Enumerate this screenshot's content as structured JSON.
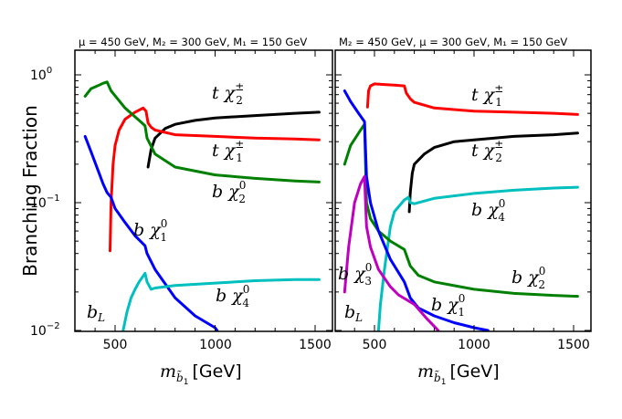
{
  "chart_data": [
    {
      "type": "line",
      "panel": "left",
      "title": "μ = 450 GeV, M₂ = 300 GeV, M₁ = 150 GeV",
      "xlabel": "m_b̃₁ [GeV]",
      "ylabel": "Branching Fraction",
      "yscale": "log",
      "xlim": [
        300,
        1550
      ],
      "ylim": [
        0.01,
        1.5
      ],
      "xticks": [
        500,
        1000,
        1500
      ],
      "yticks": [
        0.01,
        0.1,
        1
      ],
      "series": [
        {
          "name": "t χ₂±",
          "color": "#000000",
          "x": [
            665,
            680,
            700,
            750,
            800,
            900,
            1000,
            1200,
            1400,
            1520
          ],
          "y": [
            0.19,
            0.26,
            0.32,
            0.38,
            0.41,
            0.44,
            0.46,
            0.48,
            0.5,
            0.51
          ]
        },
        {
          "name": "t χ₁±",
          "color": "#ff0000",
          "x": [
            475,
            480,
            490,
            500,
            520,
            550,
            600,
            640,
            655,
            665,
            680,
            700,
            800,
            1000,
            1200,
            1400,
            1520
          ],
          "y": [
            0.042,
            0.1,
            0.2,
            0.28,
            0.37,
            0.45,
            0.51,
            0.55,
            0.52,
            0.42,
            0.39,
            0.37,
            0.34,
            0.33,
            0.32,
            0.315,
            0.31
          ]
        },
        {
          "name": "b χ₂⁰",
          "color": "#008000",
          "x": [
            350,
            380,
            420,
            440,
            460,
            480,
            550,
            620,
            650,
            660,
            700,
            800,
            1000,
            1200,
            1400,
            1520
          ],
          "y": [
            0.68,
            0.78,
            0.83,
            0.86,
            0.88,
            0.75,
            0.55,
            0.44,
            0.4,
            0.32,
            0.24,
            0.19,
            0.165,
            0.155,
            0.148,
            0.145
          ]
        },
        {
          "name": "b χ₁⁰",
          "color": "#0000ff",
          "x": [
            350,
            380,
            420,
            440,
            460,
            480,
            500,
            550,
            600,
            650,
            660,
            700,
            800,
            900,
            1000,
            1010
          ],
          "y": [
            0.33,
            0.25,
            0.17,
            0.14,
            0.12,
            0.11,
            0.09,
            0.07,
            0.055,
            0.046,
            0.04,
            0.03,
            0.018,
            0.013,
            0.0105,
            0.01
          ]
        },
        {
          "name": "b χ₄⁰",
          "color": "#00bfbf",
          "x": [
            540,
            560,
            580,
            600,
            620,
            650,
            660,
            680,
            700,
            800,
            1000,
            1200,
            1400,
            1520
          ],
          "y": [
            0.01,
            0.014,
            0.018,
            0.021,
            0.024,
            0.028,
            0.024,
            0.021,
            0.0215,
            0.0225,
            0.0235,
            0.0245,
            0.025,
            0.025
          ]
        }
      ],
      "annotations": [
        "t χ₂±",
        "t χ₁±",
        "b χ₂⁰",
        "b χ₁⁰",
        "b χ₄⁰",
        "b_L"
      ]
    },
    {
      "type": "line",
      "panel": "right",
      "title": "M₂ = 450 GeV, μ = 300 GeV, M₁ = 150 GeV",
      "xlabel": "m_b̃₁ [GeV]",
      "ylabel": "Branching Fraction",
      "yscale": "log",
      "xlim": [
        300,
        1550
      ],
      "ylim": [
        0.01,
        1.5
      ],
      "xticks": [
        500,
        1000,
        1500
      ],
      "yticks": [
        0.01,
        0.1,
        1
      ],
      "series": [
        {
          "name": "t χ₁±",
          "color": "#ff0000",
          "x": [
            465,
            470,
            480,
            500,
            550,
            600,
            650,
            660,
            680,
            700,
            800,
            1000,
            1200,
            1400,
            1520
          ],
          "y": [
            0.56,
            0.75,
            0.82,
            0.85,
            0.84,
            0.83,
            0.82,
            0.72,
            0.65,
            0.61,
            0.55,
            0.52,
            0.51,
            0.5,
            0.49
          ]
        },
        {
          "name": "t χ₂±",
          "color": "#000000",
          "x": [
            675,
            680,
            690,
            700,
            750,
            800,
            900,
            1000,
            1200,
            1400,
            1520
          ],
          "y": [
            0.085,
            0.12,
            0.17,
            0.2,
            0.24,
            0.27,
            0.3,
            0.31,
            0.33,
            0.34,
            0.35
          ]
        },
        {
          "name": "b χ₄⁰",
          "color": "#00bfbf",
          "x": [
            520,
            530,
            550,
            580,
            600,
            650,
            670,
            680,
            700,
            800,
            1000,
            1200,
            1400,
            1520
          ],
          "y": [
            0.01,
            0.016,
            0.03,
            0.065,
            0.085,
            0.105,
            0.11,
            0.1,
            0.098,
            0.108,
            0.118,
            0.125,
            0.13,
            0.132
          ]
        },
        {
          "name": "b χ₂⁰",
          "color": "#008000",
          "x": [
            350,
            380,
            420,
            440,
            450,
            460,
            480,
            520,
            580,
            650,
            665,
            680,
            720,
            800,
            1000,
            1200,
            1400,
            1520
          ],
          "y": [
            0.2,
            0.28,
            0.35,
            0.39,
            0.41,
            0.1,
            0.075,
            0.06,
            0.05,
            0.043,
            0.037,
            0.032,
            0.027,
            0.024,
            0.021,
            0.0195,
            0.0188,
            0.0185
          ]
        },
        {
          "name": "b χ₁⁰",
          "color": "#0000ff",
          "x": [
            350,
            380,
            420,
            450,
            460,
            480,
            520,
            580,
            650,
            680,
            720,
            800,
            900,
            1000,
            1070
          ],
          "y": [
            0.75,
            0.62,
            0.5,
            0.43,
            0.16,
            0.1,
            0.06,
            0.036,
            0.024,
            0.018,
            0.015,
            0.013,
            0.0115,
            0.0105,
            0.01
          ]
        },
        {
          "name": "b χ₃⁰",
          "color": "#bf00bf",
          "x": [
            350,
            370,
            400,
            430,
            450,
            460,
            480,
            520,
            580,
            620,
            700,
            760,
            820
          ],
          "y": [
            0.02,
            0.045,
            0.1,
            0.14,
            0.16,
            0.065,
            0.045,
            0.03,
            0.022,
            0.019,
            0.016,
            0.0125,
            0.01
          ]
        }
      ],
      "annotations": [
        "t χ₁±",
        "t χ₂±",
        "b χ₄⁰",
        "b χ₂⁰",
        "b χ₁⁰",
        "b χ₃⁰",
        "b_L"
      ]
    }
  ],
  "text": {
    "left_title": "μ = 450 GeV, M₂ = 300 GeV, M₁ = 150 GeV",
    "right_title": "M₂ = 450 GeV, μ = 300 GeV, M₁ = 150 GeV",
    "ylabel": "Branching Fraction",
    "xlabel_unit": "[GeV]",
    "x_ticks": [
      "500",
      "1000",
      "1500"
    ],
    "y_tick_base": "10",
    "y_tick_exps": [
      "0",
      "−1",
      "−2"
    ],
    "left_labels": {
      "t_chi2pm": "t χ",
      "t_chi1pm": "t χ",
      "b_chi20": "b χ",
      "b_chi10": "b χ",
      "b_chi40": "b χ",
      "bL": "b"
    },
    "right_labels": {
      "t_chi1pm": "t χ",
      "t_chi2pm": "t χ",
      "b_chi40": "b χ",
      "b_chi20": "b χ",
      "b_chi10": "b χ",
      "b_chi30": "b χ",
      "bL": "b"
    }
  }
}
